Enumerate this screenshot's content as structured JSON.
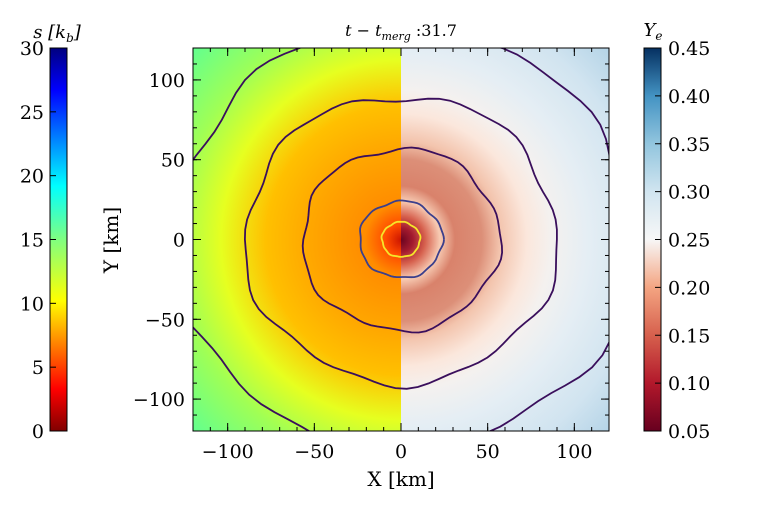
{
  "chart_data": {
    "type": "heatmap",
    "title": "t − t_merg :31.7",
    "title_parts": {
      "lhs": "t − t",
      "sub": "merg",
      "rhs": " :31.7"
    },
    "xlabel": "X [km]",
    "ylabel": "Y [km]",
    "xlim": [
      -120,
      120
    ],
    "ylim": [
      -120,
      120
    ],
    "xticks": [
      -100,
      -50,
      0,
      50,
      100
    ],
    "yticks": [
      -100,
      -50,
      0,
      50,
      100
    ],
    "xtick_labels": [
      "−100",
      "−50",
      "0",
      "50",
      "100"
    ],
    "ytick_labels": [
      "−100",
      "−50",
      "0",
      "50",
      "100"
    ],
    "left_half": {
      "quantity": "entropy",
      "colormap": "jet_r",
      "colorbar_title": "s [k_b]",
      "colorbar_title_parts": {
        "base": "s [k",
        "sub": "b",
        "end": "]"
      },
      "range": [
        0,
        30
      ],
      "ticks": [
        0,
        5,
        10,
        15,
        20,
        25,
        30
      ],
      "tick_labels": [
        "0",
        "5",
        "10",
        "15",
        "20",
        "25",
        "30"
      ],
      "colorbar_side": "left"
    },
    "right_half": {
      "quantity": "electron fraction",
      "colormap": "RdBu",
      "colorbar_title": "Y_e",
      "colorbar_title_parts": {
        "base": "Y",
        "sub": "e"
      },
      "range": [
        0.05,
        0.45
      ],
      "ticks": [
        0.05,
        0.1,
        0.15,
        0.2,
        0.25,
        0.3,
        0.35,
        0.4,
        0.45
      ],
      "tick_labels": [
        "0.05",
        "0.10",
        "0.15",
        "0.20",
        "0.25",
        "0.30",
        "0.35",
        "0.40",
        "0.45"
      ],
      "colorbar_side": "right"
    },
    "density_contours": [
      {
        "radius_km": 11,
        "color": "#f5e62a"
      },
      {
        "radius_km": 24,
        "color": "#3b3f8c"
      },
      {
        "radius_km": 57,
        "color": "#3a0f5c"
      },
      {
        "radius_km": 90,
        "color": "#3a0f5c"
      },
      {
        "radius_km": 132,
        "color": "#3a0f5c"
      }
    ],
    "colors": {
      "background": "#ffffff",
      "axes": "#000000"
    }
  }
}
